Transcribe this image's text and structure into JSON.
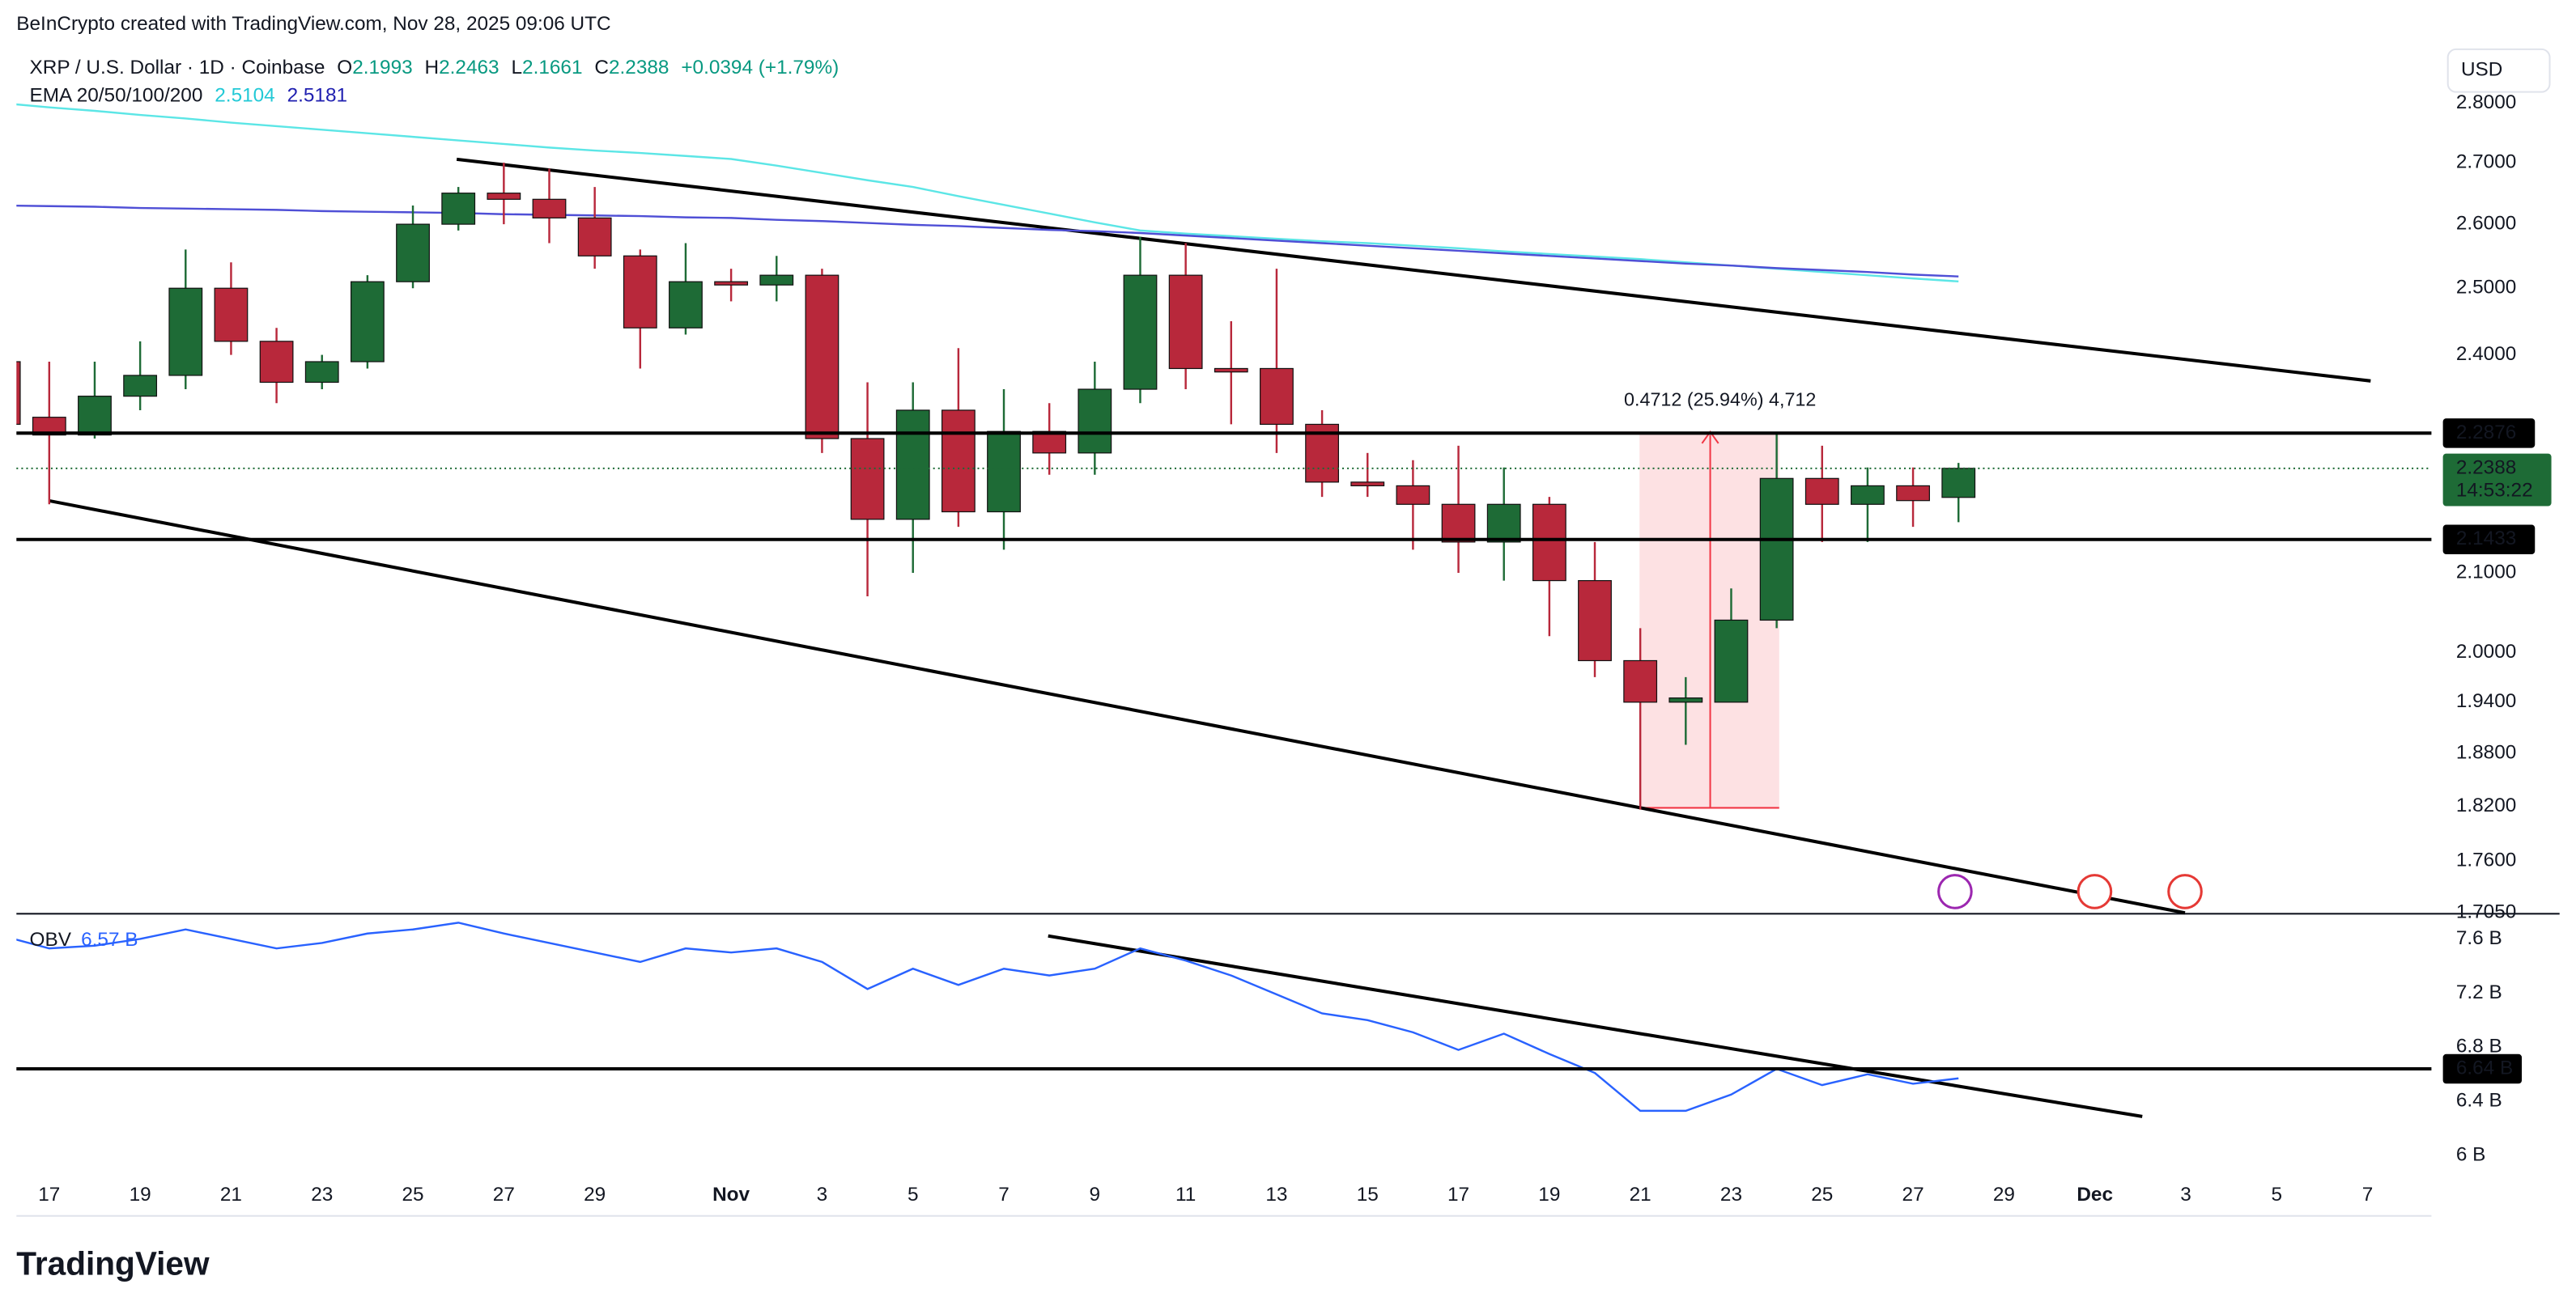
{
  "header": {
    "credit": "BeInCrypto created with TradingView.com, Nov 28, 2025 09:06 UTC",
    "symbol": "XRP / U.S. Dollar · 1D · Coinbase",
    "ohlc_letters": [
      "O",
      "H",
      "L",
      "C"
    ],
    "change": "+0.0394 (+1.79%)",
    "currency": "USD",
    "countdown": "14:53:22",
    "logo": "TradingView"
  },
  "chart_data": [
    {
      "type": "candlestick",
      "x": [
        "2025-10-16",
        "2025-10-17",
        "2025-10-18",
        "2025-10-19",
        "2025-10-20",
        "2025-10-21",
        "2025-10-22",
        "2025-10-23",
        "2025-10-24",
        "2025-10-25",
        "2025-10-26",
        "2025-10-27",
        "2025-10-28",
        "2025-10-29",
        "2025-10-30",
        "2025-10-31",
        "2025-11-01",
        "2025-11-02",
        "2025-11-03",
        "2025-11-04",
        "2025-11-05",
        "2025-11-06",
        "2025-11-07",
        "2025-11-08",
        "2025-11-09",
        "2025-11-10",
        "2025-11-11",
        "2025-11-12",
        "2025-11-13",
        "2025-11-14",
        "2025-11-15",
        "2025-11-16",
        "2025-11-17",
        "2025-11-18",
        "2025-11-19",
        "2025-11-20",
        "2025-11-21",
        "2025-11-22",
        "2025-11-23",
        "2025-11-24",
        "2025-11-25",
        "2025-11-26",
        "2025-11-27",
        "2025-11-28"
      ],
      "open": [
        2.39,
        2.31,
        2.285,
        2.34,
        2.37,
        2.5,
        2.42,
        2.36,
        2.39,
        2.51,
        2.6,
        2.65,
        2.64,
        2.61,
        2.55,
        2.44,
        2.51,
        2.505,
        2.52,
        2.28,
        2.17,
        2.32,
        2.18,
        2.29,
        2.26,
        2.35,
        2.52,
        2.38,
        2.38,
        2.3,
        2.22,
        2.215,
        2.19,
        2.14,
        2.19,
        2.09,
        1.99,
        1.94,
        1.94,
        2.04,
        2.225,
        2.19,
        2.215,
        2.1993
      ],
      "high": [
        2.41,
        2.39,
        2.39,
        2.42,
        2.56,
        2.54,
        2.44,
        2.4,
        2.52,
        2.63,
        2.66,
        2.7,
        2.69,
        2.66,
        2.56,
        2.57,
        2.53,
        2.55,
        2.53,
        2.36,
        2.36,
        2.41,
        2.35,
        2.33,
        2.39,
        2.58,
        2.57,
        2.45,
        2.53,
        2.32,
        2.26,
        2.25,
        2.27,
        2.24,
        2.2,
        2.14,
        2.03,
        1.97,
        2.08,
        2.2876,
        2.27,
        2.24,
        2.24,
        2.2463
      ],
      "low": [
        2.29,
        2.19,
        2.28,
        2.32,
        2.35,
        2.4,
        2.33,
        2.35,
        2.38,
        2.5,
        2.59,
        2.6,
        2.57,
        2.53,
        2.38,
        2.43,
        2.48,
        2.48,
        2.26,
        2.07,
        2.1,
        2.16,
        2.13,
        2.23,
        2.23,
        2.33,
        2.35,
        2.3,
        2.26,
        2.2,
        2.2,
        2.13,
        2.1,
        2.09,
        2.02,
        1.97,
        1.8164,
        1.89,
        1.94,
        2.03,
        2.14,
        2.14,
        2.16,
        2.1661
      ],
      "close": [
        2.3,
        2.285,
        2.34,
        2.37,
        2.5,
        2.42,
        2.36,
        2.39,
        2.51,
        2.6,
        2.65,
        2.64,
        2.61,
        2.55,
        2.44,
        2.51,
        2.505,
        2.52,
        2.28,
        2.17,
        2.32,
        2.18,
        2.29,
        2.26,
        2.35,
        2.52,
        2.38,
        2.375,
        2.3,
        2.22,
        2.215,
        2.19,
        2.14,
        2.19,
        2.09,
        1.99,
        1.94,
        1.945,
        2.04,
        2.225,
        2.19,
        2.215,
        2.195,
        2.2388
      ],
      "up_color": "#1e6b36",
      "down_color": "#b8283b",
      "ema_label": "EMA 20/50/100/200",
      "series": [
        {
          "color": "#5ce6e6",
          "values": [
            2.8,
            2.793,
            2.787,
            2.78,
            2.774,
            2.767,
            2.761,
            2.755,
            2.749,
            2.743,
            2.737,
            2.731,
            2.725,
            2.72,
            2.716,
            2.711,
            2.706,
            2.695,
            2.683,
            2.671,
            2.66,
            2.645,
            2.631,
            2.617,
            2.603,
            2.59,
            2.585,
            2.581,
            2.577,
            2.573,
            2.57,
            2.566,
            2.562,
            2.557,
            2.553,
            2.549,
            2.545,
            2.54,
            2.535,
            2.53,
            2.525,
            2.52,
            2.515,
            2.5104
          ]
        },
        {
          "color": "#4f4fd6",
          "values": [
            2.63,
            2.629,
            2.628,
            2.626,
            2.625,
            2.624,
            2.623,
            2.621,
            2.62,
            2.619,
            2.618,
            2.616,
            2.615,
            2.614,
            2.613,
            2.611,
            2.61,
            2.607,
            2.605,
            2.602,
            2.599,
            2.597,
            2.594,
            2.591,
            2.589,
            2.586,
            2.582,
            2.578,
            2.574,
            2.57,
            2.566,
            2.562,
            2.558,
            2.554,
            2.55,
            2.546,
            2.542,
            2.538,
            2.535,
            2.531,
            2.528,
            2.525,
            2.521,
            2.5181
          ]
        }
      ],
      "hlines": [
        2.2876,
        2.1433
      ],
      "measure_label": "0.4712 (25.94%) 4,712",
      "log_scale": true,
      "xlim": [
        "2025-10-16",
        "2025-12-09"
      ],
      "ylim": [
        1.705,
        2.9
      ],
      "yticks": [
        {
          "value": 2.8,
          "label": "2.8000"
        },
        {
          "value": 2.7,
          "label": "2.7000"
        },
        {
          "value": 2.6,
          "label": "2.6000"
        },
        {
          "value": 2.5,
          "label": "2.5000"
        },
        {
          "value": 2.4,
          "label": "2.4000"
        },
        {
          "value": 2.1,
          "label": "2.1000"
        },
        {
          "value": 2,
          "label": "2.0000"
        },
        {
          "value": 1.94,
          "label": "1.9400"
        },
        {
          "value": 1.88,
          "label": "1.8800"
        },
        {
          "value": 1.82,
          "label": "1.8200"
        },
        {
          "value": 1.76,
          "label": "1.7600"
        },
        {
          "value": 1.705,
          "label": "1.7050"
        }
      ]
    },
    {
      "type": "line",
      "x": [
        "2025-10-16",
        "2025-10-17",
        "2025-10-18",
        "2025-10-19",
        "2025-10-20",
        "2025-10-21",
        "2025-10-22",
        "2025-10-23",
        "2025-10-24",
        "2025-10-25",
        "2025-10-26",
        "2025-10-27",
        "2025-10-28",
        "2025-10-29",
        "2025-10-30",
        "2025-10-31",
        "2025-11-01",
        "2025-11-02",
        "2025-11-03",
        "2025-11-04",
        "2025-11-05",
        "2025-11-06",
        "2025-11-07",
        "2025-11-08",
        "2025-11-09",
        "2025-11-10",
        "2025-11-11",
        "2025-11-12",
        "2025-11-13",
        "2025-11-14",
        "2025-11-15",
        "2025-11-16",
        "2025-11-17",
        "2025-11-18",
        "2025-11-19",
        "2025-11-20",
        "2025-11-21",
        "2025-11-22",
        "2025-11-23",
        "2025-11-24",
        "2025-11-25",
        "2025-11-26",
        "2025-11-27",
        "2025-11-28"
      ],
      "series": [
        {
          "name": "OBV",
          "color": "#2962ff",
          "legend_value": "6.57 B",
          "values": [
            7.62,
            7.53,
            7.55,
            7.6,
            7.67,
            7.6,
            7.53,
            7.57,
            7.64,
            7.67,
            7.72,
            7.64,
            7.57,
            7.5,
            7.43,
            7.53,
            7.5,
            7.53,
            7.43,
            7.23,
            7.38,
            7.26,
            7.38,
            7.33,
            7.38,
            7.53,
            7.44,
            7.33,
            7.19,
            7.05,
            7.0,
            6.91,
            6.78,
            6.9,
            6.75,
            6.61,
            6.33,
            6.33,
            6.45,
            6.64,
            6.52,
            6.6,
            6.53,
            6.57
          ]
        }
      ],
      "hlines": [
        {
          "value": 6.64,
          "label": "6.64 B"
        }
      ],
      "xlim": [
        "2025-10-16",
        "2025-12-09"
      ],
      "ylim": [
        5.56,
        7.78
      ],
      "yticks": [
        {
          "value": 7.6,
          "label": "7.6 B"
        },
        {
          "value": 7.2,
          "label": "7.2 B"
        },
        {
          "value": 6.8,
          "label": "6.8 B"
        },
        {
          "value": 6.4,
          "label": "6.4 B"
        },
        {
          "value": 6,
          "label": "6 B"
        }
      ],
      "xticks": [
        {
          "value": "2025-10-17",
          "label": "17"
        },
        {
          "value": "2025-10-19",
          "label": "19"
        },
        {
          "value": "2025-10-21",
          "label": "21"
        },
        {
          "value": "2025-10-23",
          "label": "23"
        },
        {
          "value": "2025-10-25",
          "label": "25"
        },
        {
          "value": "2025-10-27",
          "label": "27"
        },
        {
          "value": "2025-10-29",
          "label": "29"
        },
        {
          "value": "2025-11-01",
          "label": "Nov"
        },
        {
          "value": "2025-11-03",
          "label": "3"
        },
        {
          "value": "2025-11-05",
          "label": "5"
        },
        {
          "value": "2025-11-07",
          "label": "7"
        },
        {
          "value": "2025-11-09",
          "label": "9"
        },
        {
          "value": "2025-11-11",
          "label": "11"
        },
        {
          "value": "2025-11-13",
          "label": "13"
        },
        {
          "value": "2025-11-15",
          "label": "15"
        },
        {
          "value": "2025-11-17",
          "label": "17"
        },
        {
          "value": "2025-11-19",
          "label": "19"
        },
        {
          "value": "2025-11-21",
          "label": "21"
        },
        {
          "value": "2025-11-23",
          "label": "23"
        },
        {
          "value": "2025-11-25",
          "label": "25"
        },
        {
          "value": "2025-11-27",
          "label": "27"
        },
        {
          "value": "2025-11-29",
          "label": "29"
        },
        {
          "value": "2025-12-01",
          "label": "Dec"
        },
        {
          "value": "2025-12-03",
          "label": "3"
        },
        {
          "value": "2025-12-05",
          "label": "5"
        },
        {
          "value": "2025-12-07",
          "label": "7"
        }
      ]
    }
  ]
}
